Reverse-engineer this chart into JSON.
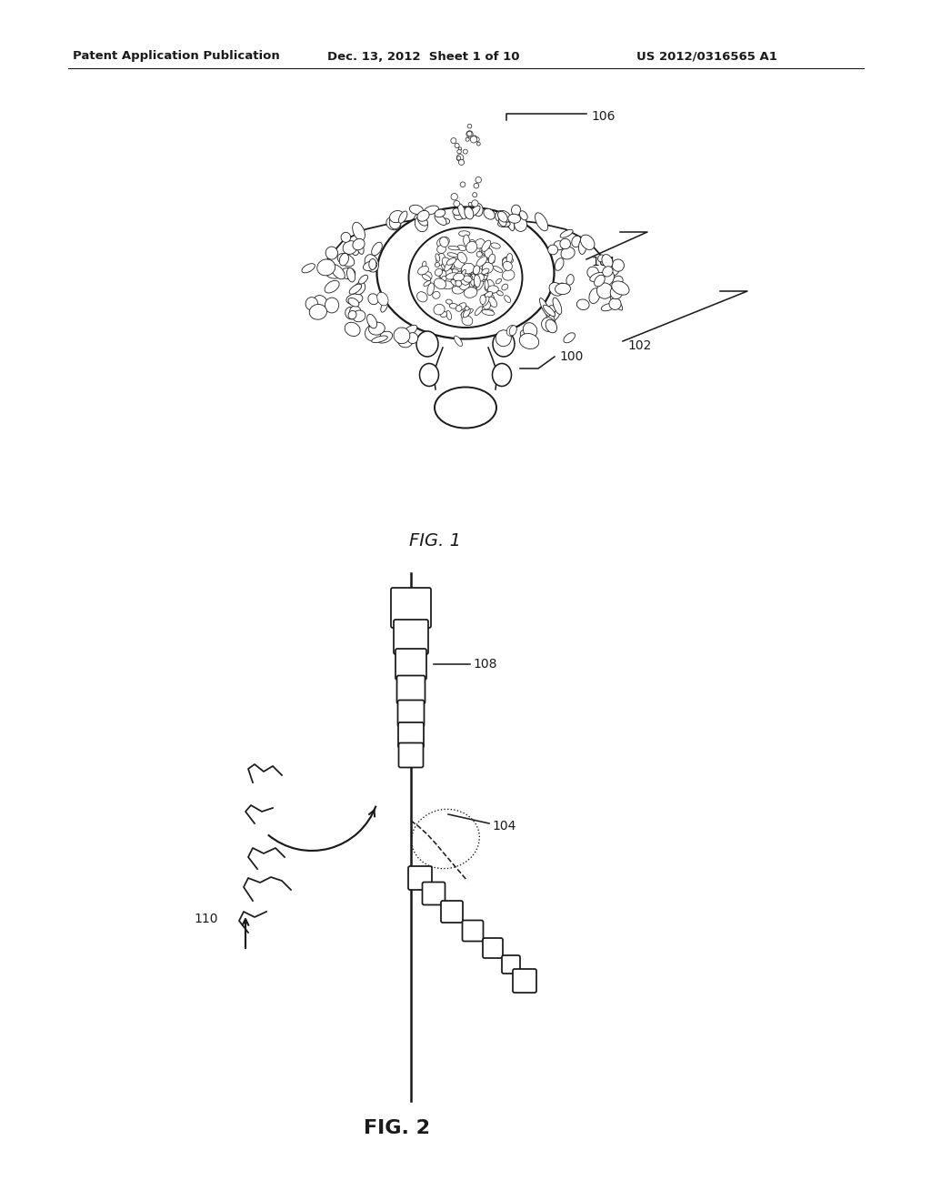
{
  "background_color": "#ffffff",
  "header_left": "Patent Application Publication",
  "header_middle": "Dec. 13, 2012  Sheet 1 of 10",
  "header_right": "US 2012/0316565 A1",
  "fig1_label": "FIG. 1",
  "fig2_label": "FIG. 2",
  "line_color": "#1a1a1a",
  "line_width": 1.4
}
